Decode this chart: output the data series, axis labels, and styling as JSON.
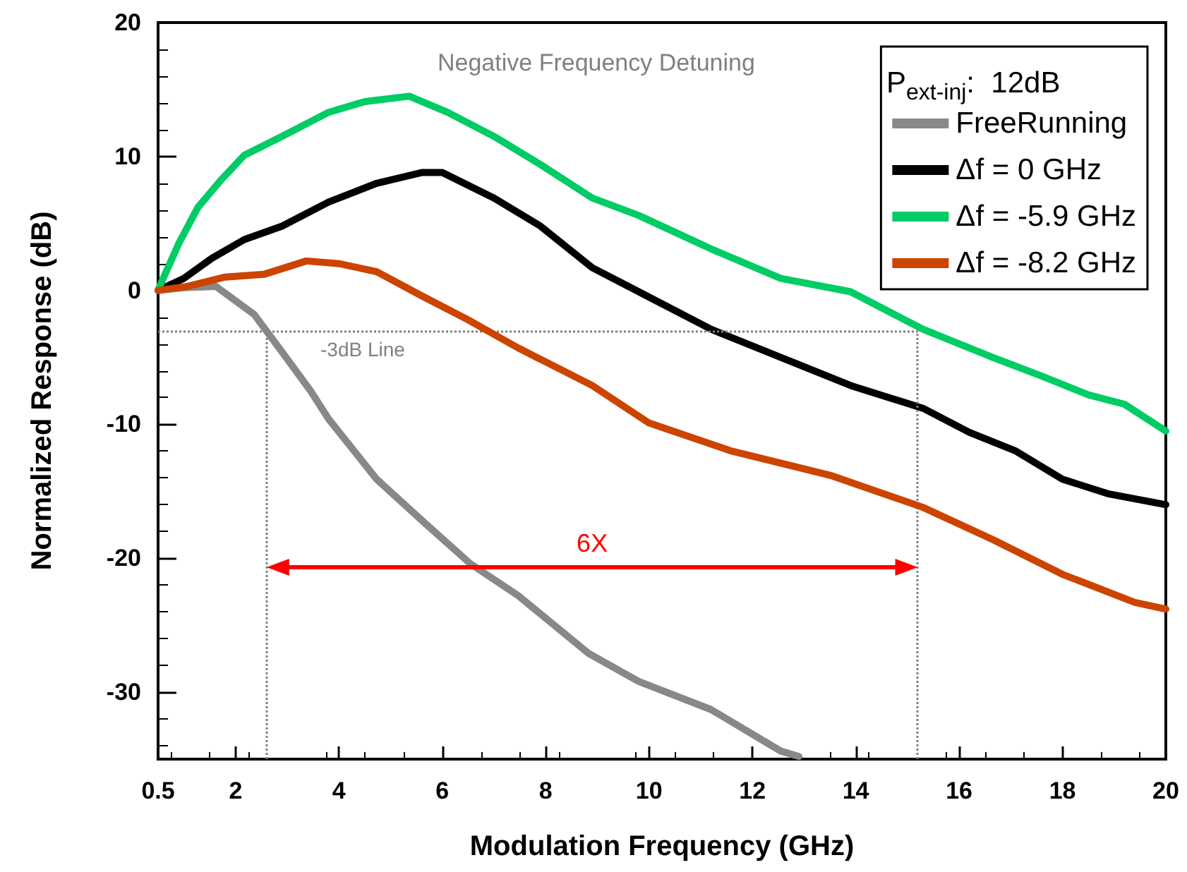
{
  "chart_data": {
    "type": "line",
    "xlabel": "Modulation Frequency (GHz)",
    "ylabel": "Normalized Response (dB)",
    "legend_title": "P$_{ext-inj}$:  12dB",
    "xlim": [
      0.5,
      20
    ],
    "xticks": [
      0.5,
      2,
      4,
      6,
      8,
      10,
      12,
      14,
      16,
      18,
      20
    ],
    "ylim": [
      -35,
      20
    ],
    "yticks": [
      -30,
      -20,
      -10,
      0,
      10,
      20
    ],
    "grid": false,
    "legend": "top right",
    "marker": "none",
    "line_style": "solid",
    "series": [
      {
        "name": "FreeRunning",
        "color": "#888888",
        "x": [
          0.5,
          1.0,
          1.62,
          2.36,
          2.9,
          3.45,
          3.8,
          4.73,
          5.64,
          6.54,
          7.47,
          8.83,
          9.8,
          11.2,
          12.55,
          12.9
        ],
        "values": [
          0,
          0.2,
          0.3,
          -1.8,
          -4.6,
          -7.5,
          -9.6,
          -14.1,
          -17.3,
          -20.4,
          -22.8,
          -27.1,
          -29.2,
          -31.3,
          -34.4,
          -34.8
        ]
      },
      {
        "name": "Δf = 0 GHz",
        "color": "#000000",
        "x": [
          0.5,
          1.0,
          1.54,
          2.17,
          2.9,
          3.8,
          4.73,
          5.6,
          6.0,
          7.0,
          7.9,
          8.9,
          9.8,
          11.2,
          12.55,
          13.9,
          15.3,
          16.2,
          17.1,
          18.0,
          18.9,
          20
        ],
        "values": [
          0,
          0.9,
          2.4,
          3.8,
          4.8,
          6.6,
          8,
          8.8,
          8.8,
          6.9,
          4.8,
          1.7,
          -0.1,
          -2.9,
          -5,
          -7.1,
          -8.8,
          -10.6,
          -12,
          -14.1,
          -15.2,
          -16
        ]
      },
      {
        "name": "Δf = -5.9 GHz",
        "color": "#00cc66",
        "x": [
          0.5,
          0.53,
          0.9,
          1.27,
          1.73,
          2.17,
          2.9,
          3.8,
          4.5,
          5.36,
          6.1,
          7.0,
          7.9,
          8.9,
          9.8,
          11.2,
          12.55,
          13.9,
          15.3,
          16.65,
          17.6,
          18.5,
          19.2,
          19.6,
          20
        ],
        "values": [
          0,
          0.3,
          3.5,
          6.2,
          8.3,
          10.1,
          11.5,
          13.3,
          14.1,
          14.5,
          13.3,
          11.5,
          9.4,
          6.9,
          5.6,
          3.1,
          0.9,
          -0.1,
          -2.9,
          -5,
          -6.4,
          -7.8,
          -8.5,
          -9.5,
          -10.5
        ]
      },
      {
        "name": "Δf = -8.2 GHz",
        "color": "#cc4400",
        "x": [
          0.5,
          1.07,
          1.8,
          2.55,
          3.37,
          4.0,
          4.73,
          5.6,
          6.5,
          7.47,
          8.9,
          10.0,
          11.6,
          13.5,
          15.3,
          16.65,
          18.0,
          19.4,
          20
        ],
        "values": [
          0,
          0.3,
          1,
          1.2,
          2.2,
          2,
          1.4,
          -0.4,
          -2.2,
          -4.3,
          -7.1,
          -9.9,
          -12,
          -13.8,
          -16.2,
          -18.6,
          -21.2,
          -23.3,
          -23.8
        ]
      }
    ],
    "ref_lines": [
      {
        "axis": "y",
        "value": -3,
        "label": "-3dB Line",
        "color": "#808080",
        "line_style": "dotted"
      },
      {
        "axis": "x",
        "value": 2.6,
        "color": "#808080",
        "line_style": "dotted"
      },
      {
        "axis": "x",
        "value": 15.2,
        "color": "#808080",
        "line_style": "dotted"
      }
    ],
    "annotations": [
      "Negative Frequency Detuning",
      "6X"
    ]
  }
}
